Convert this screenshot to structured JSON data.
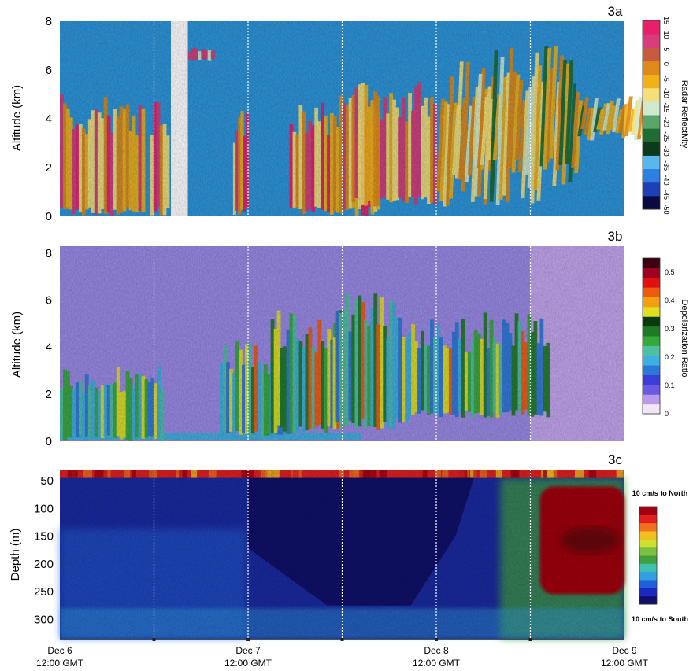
{
  "chart_data": [
    {
      "type": "heatmap",
      "panel_label": "3a",
      "ylabel": "Altitude (km)",
      "y_ticks": [
        0,
        2,
        4,
        6,
        8
      ],
      "ylim": [
        0,
        8
      ],
      "colorbar": {
        "label": "Radar Reflectivity",
        "ticks": [
          "-50",
          "-45",
          "-40",
          "-35",
          "-30",
          "-25",
          "-20",
          "-15",
          "-10",
          "-5",
          "0",
          "5",
          "10",
          "15"
        ],
        "range": [
          -50,
          15
        ],
        "colors": [
          "#0a0a40",
          "#1d3fb8",
          "#2f7fe0",
          "#58b8ee",
          "#0d3a1a",
          "#1e6b34",
          "#5aa56a",
          "#cfe9cf",
          "#f4e07a",
          "#efb21a",
          "#de8a1a",
          "#c85a40",
          "#d83c7a",
          "#e8206a"
        ]
      },
      "background_color": "#2e95da",
      "features": [
        {
          "t0": 0.0,
          "t1": 0.45,
          "top": 5.0,
          "base": 0.0,
          "kind": "precip-core"
        },
        {
          "t0": 0.48,
          "t1": 0.58,
          "top": 4.8,
          "base": 0.0,
          "kind": "precip-core"
        },
        {
          "t0": 0.68,
          "t1": 0.82,
          "top": 6.9,
          "base": 6.4,
          "kind": "high-cloud"
        },
        {
          "t0": 0.92,
          "t1": 1.0,
          "top": 4.4,
          "base": 0.0,
          "kind": "precip-core"
        },
        {
          "t0": 1.22,
          "t1": 1.7,
          "top": 5.0,
          "base": 0.0,
          "kind": "precip-core"
        },
        {
          "t0": 1.55,
          "t1": 2.0,
          "top": 5.7,
          "base": 0.4,
          "kind": "stratiform"
        },
        {
          "t0": 2.0,
          "t1": 2.3,
          "top": 6.6,
          "base": 0.4,
          "kind": "fall-streaks"
        },
        {
          "t0": 2.2,
          "t1": 2.75,
          "top": 7.0,
          "base": 0.4,
          "kind": "fall-streaks"
        },
        {
          "t0": 2.75,
          "t1": 3.1,
          "top": 5.0,
          "base": 3.1,
          "kind": "fall-streaks"
        }
      ]
    },
    {
      "type": "heatmap",
      "panel_label": "3b",
      "ylabel": "Altitude (km)",
      "y_ticks": [
        0,
        2,
        4,
        6,
        8
      ],
      "ylim": [
        0,
        8.3
      ],
      "colorbar": {
        "label": "Depolarization Ratio",
        "ticks": [
          "0",
          "0.1",
          "0.2",
          "0.3",
          "0.4",
          "0.5"
        ],
        "range": [
          0,
          0.55
        ],
        "colors": [
          "#f2e6f6",
          "#b89ae8",
          "#6a5ae0",
          "#3c3cd8",
          "#2c78d8",
          "#3cb0e0",
          "#4cc0a0",
          "#36a83a",
          "#1f7a26",
          "#0a3a0a",
          "#e0e020",
          "#f0a010",
          "#f05a10",
          "#e01010",
          "#a00020",
          "#3a0010"
        ]
      },
      "background_color": "#9a8ae6",
      "features": [
        {
          "t0": 0.0,
          "t1": 0.55,
          "top": 3.2,
          "base": 0.0,
          "kind": "aerosol-layer"
        },
        {
          "t0": 0.85,
          "t1": 1.2,
          "top": 4.3,
          "base": 0.1,
          "kind": "cloud"
        },
        {
          "t0": 1.12,
          "t1": 1.52,
          "top": 5.6,
          "base": 0.3,
          "kind": "cloud"
        },
        {
          "t0": 1.45,
          "t1": 1.85,
          "top": 6.3,
          "base": 0.5,
          "kind": "cloud"
        },
        {
          "t0": 1.85,
          "t1": 2.2,
          "top": 5.2,
          "base": 1.0,
          "kind": "cloud"
        },
        {
          "t0": 2.2,
          "t1": 2.6,
          "top": 5.5,
          "base": 1.0,
          "kind": "cloud"
        }
      ]
    },
    {
      "type": "heatmap",
      "panel_label": "3c",
      "ylabel": "Depth (m)",
      "y_ticks": [
        50,
        100,
        150,
        200,
        250,
        300
      ],
      "ylim": [
        30,
        335
      ],
      "colorbar": {
        "label_top": "10 cm/s to North",
        "label_bottom": "10 cm/s to South",
        "range": [
          -10,
          10
        ],
        "colors": [
          "#10106a",
          "#1a2ac0",
          "#2060d8",
          "#30a0e0",
          "#40c0b0",
          "#40a040",
          "#80c040",
          "#d0e030",
          "#f0c020",
          "#f07020",
          "#e02020",
          "#a00010"
        ]
      },
      "background_color": "#1a2aa0",
      "features": [
        {
          "t0": 0.0,
          "t1": 3.0,
          "top": 30,
          "base": 45,
          "kind": "surface-layer"
        },
        {
          "t0": 1.0,
          "t1": 2.2,
          "top": 45,
          "base": 275,
          "kind": "southward-flow"
        },
        {
          "t0": 2.55,
          "t1": 3.0,
          "top": 60,
          "base": 255,
          "kind": "northward-flow"
        }
      ]
    }
  ],
  "shared_x": {
    "range_days": [
      0,
      3
    ],
    "tick_labels": [
      {
        "t": 0,
        "line1": "Dec 6",
        "line2": "12:00 GMT"
      },
      {
        "t": 1,
        "line1": "Dec 7",
        "line2": "12:00 GMT"
      },
      {
        "t": 2,
        "line1": "Dec 8",
        "line2": "12:00 GMT"
      },
      {
        "t": 3,
        "line1": "Dec 9",
        "line2": "12:00 GMT"
      }
    ],
    "dotted_markers": [
      0.5,
      1.0,
      1.5,
      2.0,
      2.5
    ]
  }
}
